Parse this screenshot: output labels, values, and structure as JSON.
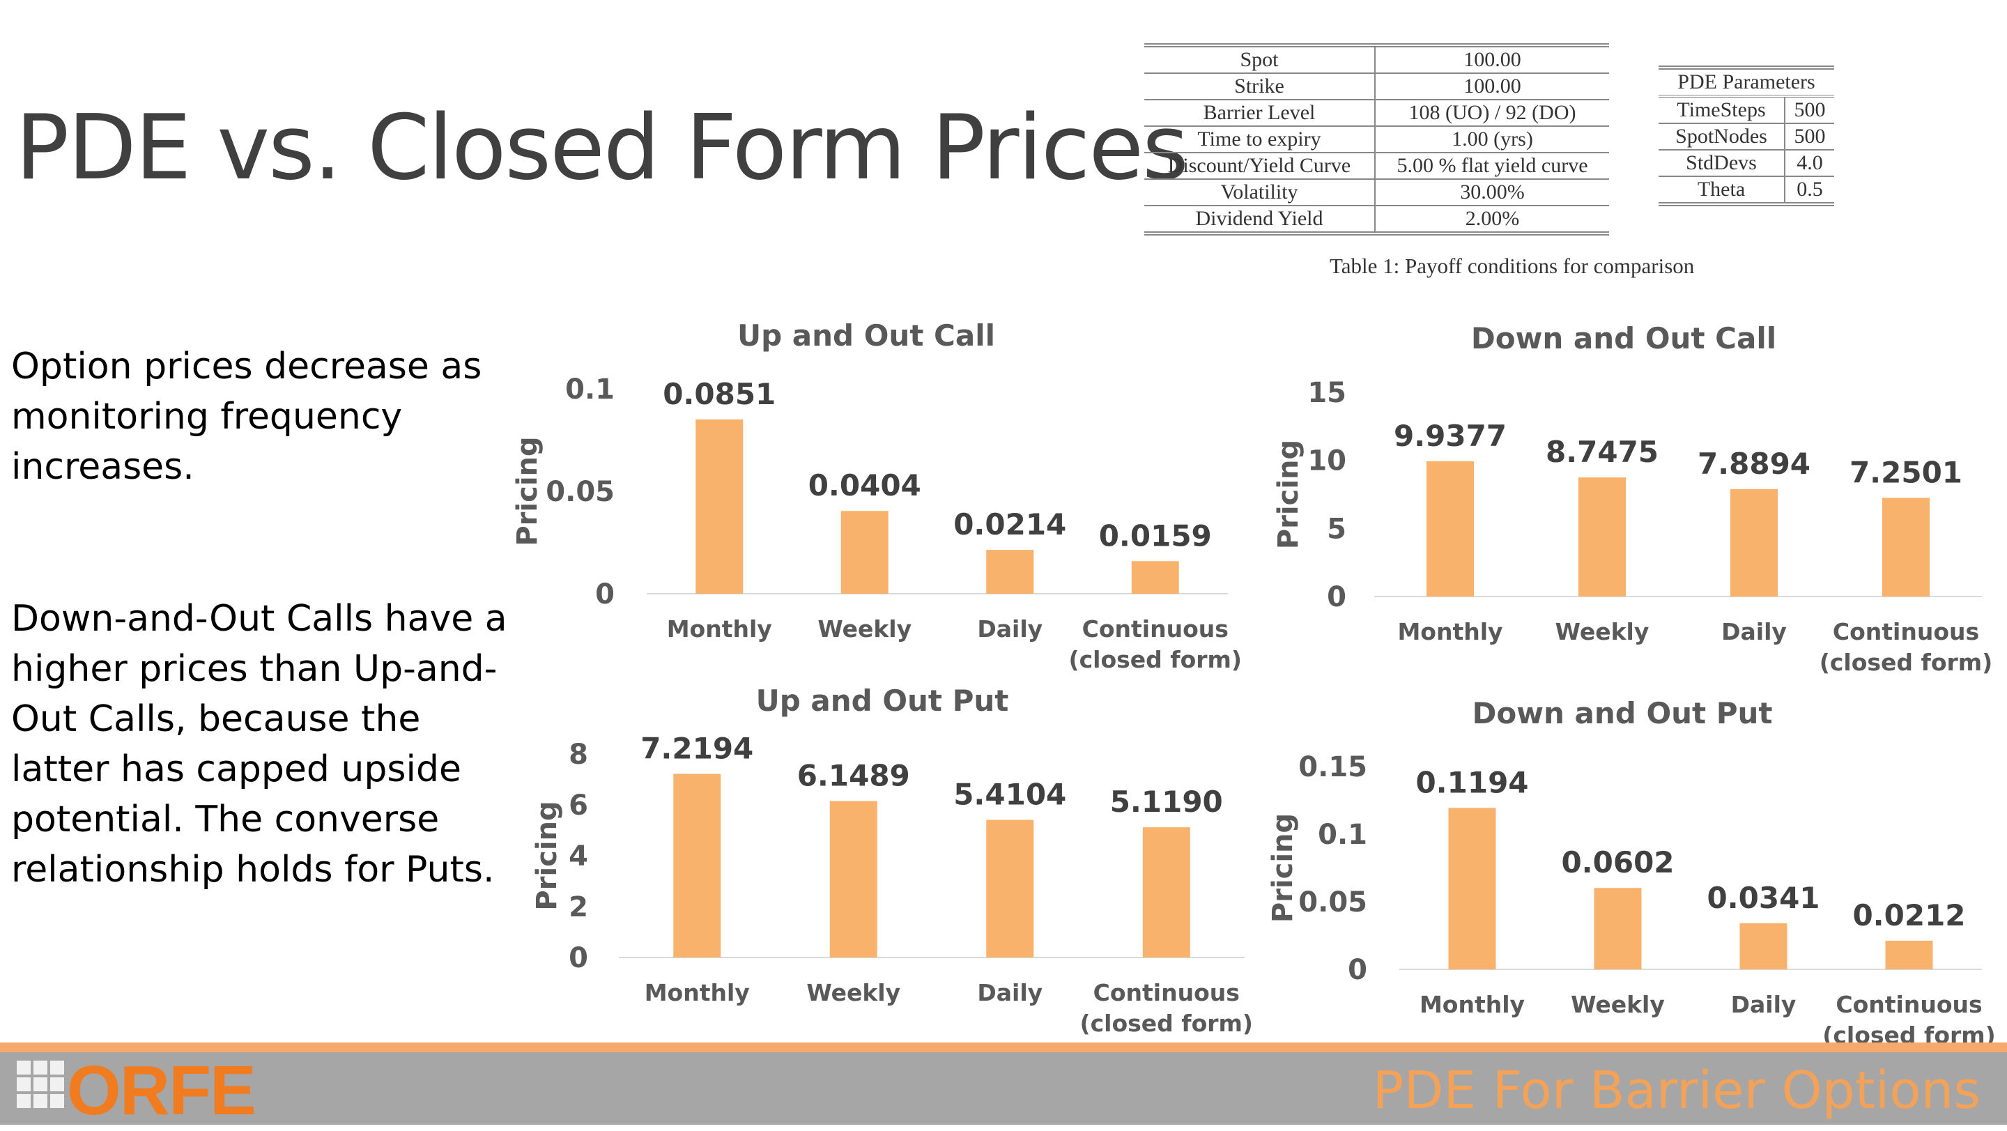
{
  "slide": {
    "title": "PDE vs. Closed Form Prices",
    "para1": "Option prices decrease as monitoring frequency increases.",
    "para2": "Down-and-Out Calls have a higher prices than Up-and-Out Calls, because the latter has capped upside potential. The converse relationship holds for Puts.",
    "footer": "PDE For Barrier Options",
    "logo_text": "ORFE"
  },
  "params_table": {
    "rows": [
      [
        "Spot",
        "100.00"
      ],
      [
        "Strike",
        "100.00"
      ],
      [
        "Barrier Level",
        "108 (UO) / 92 (DO)"
      ],
      [
        "Time to expiry",
        "1.00 (yrs)"
      ],
      [
        "Discount/Yield Curve",
        "5.00 % flat yield curve"
      ],
      [
        "Volatility",
        "30.00%"
      ],
      [
        "Dividend Yield",
        "2.00%"
      ]
    ],
    "caption": "Table 1: Payoff conditions for comparison"
  },
  "pde_table": {
    "header": "PDE Parameters",
    "rows": [
      [
        "TimeSteps",
        "500"
      ],
      [
        "SpotNodes",
        "500"
      ],
      [
        "StdDevs",
        "4.0"
      ],
      [
        "Theta",
        "0.5"
      ]
    ]
  },
  "colors": {
    "bar": "#f9b26b",
    "axis_text": "#595959",
    "label_text": "#404040"
  },
  "chart_data": [
    {
      "type": "bar",
      "title": "Up and Out Call",
      "ylabel": "Pricing",
      "categories": [
        "Monthly",
        "Weekly",
        "Daily",
        "Continuous\n(closed form)"
      ],
      "values": [
        0.0851,
        0.0404,
        0.0214,
        0.0159
      ],
      "labels": [
        "0.0851",
        "0.0404",
        "0.0214",
        "0.0159"
      ],
      "ylim": [
        0,
        0.1
      ],
      "yticks": [
        0,
        0.05,
        0.1
      ],
      "ytick_labels": [
        "0",
        "0.05",
        "0.1"
      ]
    },
    {
      "type": "bar",
      "title": "Down and Out Call",
      "ylabel": "Pricing",
      "categories": [
        "Monthly",
        "Weekly",
        "Daily",
        "Continuous\n(closed form)"
      ],
      "values": [
        9.9377,
        8.7475,
        7.8894,
        7.2501
      ],
      "labels": [
        "9.9377",
        "8.7475",
        "7.8894",
        "7.2501"
      ],
      "ylim": [
        0,
        15
      ],
      "yticks": [
        0,
        5,
        10,
        15
      ],
      "ytick_labels": [
        "0",
        "5",
        "10",
        "15"
      ]
    },
    {
      "type": "bar",
      "title": "Up and Out Put",
      "ylabel": "Pricing",
      "categories": [
        "Monthly",
        "Weekly",
        "Daily",
        "Continuous\n(closed form)"
      ],
      "values": [
        7.2194,
        6.1489,
        5.4104,
        5.119
      ],
      "labels": [
        "7.2194",
        "6.1489",
        "5.4104",
        "5.1190"
      ],
      "ylim": [
        0,
        8
      ],
      "yticks": [
        0,
        2,
        4,
        6,
        8
      ],
      "ytick_labels": [
        "0",
        "2",
        "4",
        "6",
        "8"
      ]
    },
    {
      "type": "bar",
      "title": "Down and Out Put",
      "ylabel": "Pricing",
      "categories": [
        "Monthly",
        "Weekly",
        "Daily",
        "Continuous\n(closed form)"
      ],
      "values": [
        0.1194,
        0.0602,
        0.0341,
        0.0212
      ],
      "labels": [
        "0.1194",
        "0.0602",
        "0.0341",
        "0.0212"
      ],
      "ylim": [
        0,
        0.15
      ],
      "yticks": [
        0,
        0.05,
        0.1,
        0.15
      ],
      "ytick_labels": [
        "0",
        "0.05",
        "0.1",
        "0.15"
      ]
    }
  ]
}
